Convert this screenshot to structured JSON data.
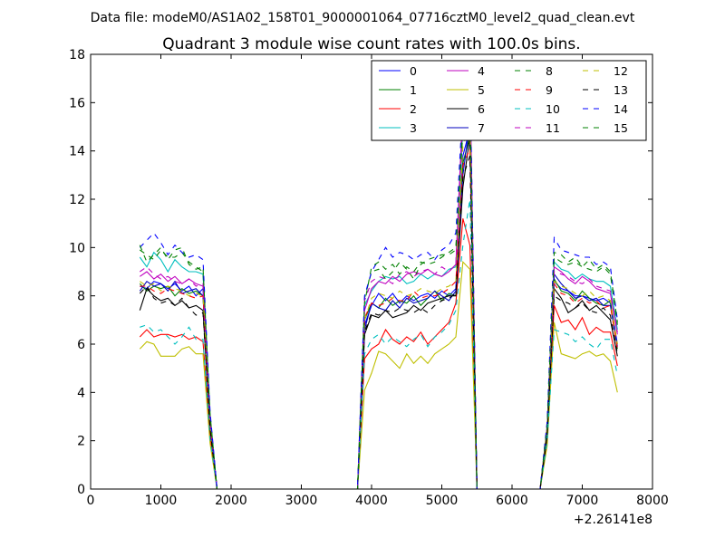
{
  "chart_data": {
    "type": "line",
    "suptitle": "Data file: modeM0/AS1A02_158T01_9000001064_07716cztM0_level2_quad_clean.evt",
    "title": "Quadrant 3 module wise count rates with 100.0s bins.",
    "xlabel": "",
    "ylabel": "",
    "x_offset_label": "+2.26141e8",
    "xlim": [
      0,
      8000
    ],
    "ylim": [
      0,
      18
    ],
    "xticks": [
      "0",
      "1000",
      "2000",
      "3000",
      "4000",
      "5000",
      "6000",
      "7000",
      "8000"
    ],
    "yticks": [
      "0",
      "2",
      "4",
      "6",
      "8",
      "10",
      "12",
      "14",
      "16",
      "18"
    ],
    "grid": false,
    "legend": {
      "placement": "top-right",
      "columns": 4
    },
    "x": [
      700,
      800,
      900,
      1000,
      1100,
      1200,
      1300,
      1400,
      1500,
      1600,
      1700,
      1800,
      1900,
      2000,
      2500,
      3000,
      3500,
      3800,
      3900,
      4000,
      4100,
      4200,
      4300,
      4400,
      4500,
      4600,
      4700,
      4800,
      4900,
      5000,
      5100,
      5200,
      5300,
      5400,
      5500,
      5600,
      6400,
      6500,
      6600,
      6700,
      6800,
      6900,
      7000,
      7100,
      7200,
      7300,
      7400,
      7500
    ],
    "series": [
      {
        "name": "0",
        "color": "#0000ff",
        "dashed": false,
        "values": [
          8.4,
          8.3,
          8.6,
          8.5,
          8.3,
          8.5,
          8.2,
          8.4,
          8.0,
          8.3,
          2.8,
          0,
          0,
          0,
          0,
          0,
          0,
          0,
          6.8,
          7.6,
          8.1,
          7.8,
          8.1,
          7.7,
          8.0,
          7.8,
          8.0,
          8.1,
          7.9,
          8.2,
          8.0,
          8.3,
          13.8,
          14.9,
          0,
          0,
          0,
          2.4,
          8.6,
          8.3,
          8.2,
          8.0,
          8.0,
          7.9,
          7.8,
          7.9,
          7.7,
          6.0
        ]
      },
      {
        "name": "1",
        "color": "#008000",
        "dashed": false,
        "values": [
          8.5,
          8.2,
          8.4,
          8.3,
          8.4,
          8.0,
          8.3,
          8.1,
          8.2,
          8.0,
          2.7,
          0,
          0,
          0,
          0,
          0,
          0,
          0,
          7.0,
          7.7,
          7.5,
          7.9,
          7.6,
          7.8,
          7.7,
          8.0,
          7.6,
          7.9,
          8.2,
          7.8,
          8.1,
          8.0,
          13.5,
          14.6,
          0,
          0,
          0,
          2.3,
          8.7,
          8.2,
          8.1,
          7.8,
          8.2,
          7.9,
          7.7,
          7.6,
          7.8,
          5.8
        ]
      },
      {
        "name": "2",
        "color": "#ff0000",
        "dashed": false,
        "values": [
          6.3,
          6.6,
          6.3,
          6.4,
          6.4,
          6.3,
          6.4,
          6.2,
          6.3,
          6.1,
          2.2,
          0,
          0,
          0,
          0,
          0,
          0,
          0,
          5.4,
          5.8,
          6.0,
          6.6,
          6.2,
          6.0,
          6.3,
          6.1,
          6.5,
          6.0,
          6.3,
          6.6,
          6.9,
          7.7,
          11.2,
          10.1,
          0,
          0,
          0,
          2.0,
          7.6,
          6.9,
          7.0,
          6.6,
          7.1,
          6.4,
          6.7,
          6.5,
          6.5,
          5.1
        ]
      },
      {
        "name": "3",
        "color": "#00bfbf",
        "dashed": false,
        "values": [
          9.6,
          9.2,
          9.8,
          9.5,
          9.0,
          9.5,
          9.2,
          9.0,
          9.0,
          8.9,
          3.0,
          0,
          0,
          0,
          0,
          0,
          0,
          0,
          7.6,
          8.2,
          8.6,
          8.8,
          8.7,
          8.8,
          8.5,
          8.6,
          8.9,
          8.7,
          8.9,
          8.8,
          9.1,
          9.2,
          15.0,
          16.6,
          0,
          0,
          0,
          2.6,
          9.4,
          9.1,
          9.0,
          8.7,
          8.9,
          8.7,
          8.6,
          8.6,
          8.4,
          6.6
        ]
      },
      {
        "name": "4",
        "color": "#bf00bf",
        "dashed": false,
        "values": [
          8.8,
          9.0,
          8.7,
          8.9,
          8.6,
          8.8,
          8.5,
          8.7,
          8.5,
          8.4,
          2.8,
          0,
          0,
          0,
          0,
          0,
          0,
          0,
          7.4,
          8.3,
          8.6,
          8.5,
          8.8,
          8.6,
          8.9,
          9.0,
          8.9,
          9.1,
          8.9,
          8.8,
          9.0,
          9.3,
          15.4,
          17.2,
          0,
          0,
          0,
          2.6,
          9.2,
          9.0,
          8.7,
          8.5,
          8.8,
          8.6,
          8.3,
          8.2,
          8.1,
          6.4
        ]
      },
      {
        "name": "5",
        "color": "#bfbf00",
        "dashed": false,
        "values": [
          5.8,
          6.1,
          6.0,
          5.5,
          5.5,
          5.5,
          5.8,
          5.9,
          5.6,
          5.6,
          1.9,
          0,
          0,
          0,
          0,
          0,
          0,
          0,
          4.1,
          4.8,
          5.7,
          5.6,
          5.3,
          5.0,
          5.6,
          5.2,
          5.5,
          5.2,
          5.6,
          5.8,
          6.0,
          6.3,
          9.4,
          9.1,
          0,
          0,
          0,
          1.8,
          6.9,
          5.6,
          5.5,
          5.4,
          5.6,
          5.7,
          5.5,
          5.6,
          5.3,
          4.0
        ]
      },
      {
        "name": "6",
        "color": "#000000",
        "dashed": false,
        "values": [
          7.4,
          8.3,
          8.0,
          7.8,
          7.9,
          7.6,
          7.8,
          7.5,
          7.6,
          7.4,
          2.5,
          0,
          0,
          0,
          0,
          0,
          0,
          0,
          6.4,
          7.2,
          7.1,
          7.4,
          7.1,
          7.2,
          7.3,
          7.6,
          7.4,
          7.7,
          7.8,
          7.9,
          8.0,
          8.0,
          12.5,
          14.6,
          0,
          0,
          0,
          2.2,
          8.3,
          7.9,
          7.3,
          7.5,
          7.8,
          7.4,
          7.6,
          7.3,
          7.0,
          5.5
        ]
      },
      {
        "name": "7",
        "color": "#0000bf",
        "dashed": false,
        "values": [
          8.2,
          8.6,
          8.4,
          8.5,
          8.2,
          8.6,
          8.1,
          8.2,
          8.3,
          8.0,
          2.7,
          0,
          0,
          0,
          0,
          0,
          0,
          0,
          6.6,
          7.7,
          7.5,
          7.4,
          7.8,
          7.5,
          7.9,
          7.7,
          7.8,
          7.9,
          8.2,
          8.0,
          7.8,
          8.2,
          13.0,
          15.2,
          0,
          0,
          0,
          2.4,
          8.9,
          8.5,
          8.2,
          7.9,
          8.0,
          7.8,
          7.9,
          7.6,
          7.6,
          5.9
        ]
      },
      {
        "name": "8",
        "color": "#008000",
        "dashed": true,
        "values": [
          9.9,
          9.7,
          9.5,
          9.9,
          9.6,
          9.6,
          9.8,
          9.4,
          9.2,
          9.0,
          3.1,
          0,
          0,
          0,
          0,
          0,
          0,
          0,
          7.9,
          9.0,
          9.1,
          8.7,
          9.0,
          9.4,
          9.1,
          8.7,
          9.3,
          9.5,
          9.6,
          9.7,
          9.7,
          9.9,
          14.8,
          15.9,
          0,
          0,
          0,
          2.7,
          9.6,
          9.4,
          9.3,
          9.4,
          9.2,
          9.1,
          9.0,
          9.2,
          8.9,
          6.8
        ]
      },
      {
        "name": "9",
        "color": "#ff0000",
        "dashed": true,
        "values": [
          8.4,
          8.4,
          8.2,
          8.1,
          8.3,
          8.2,
          8.1,
          8.0,
          7.9,
          8.0,
          2.7,
          0,
          0,
          0,
          0,
          0,
          0,
          0,
          7.1,
          7.7,
          7.6,
          7.7,
          7.9,
          7.8,
          7.8,
          8.2,
          7.9,
          8.0,
          8.0,
          8.1,
          8.3,
          8.6,
          13.4,
          14.1,
          0,
          0,
          0,
          2.4,
          8.5,
          8.1,
          8.0,
          7.7,
          7.9,
          7.7,
          7.8,
          7.5,
          7.6,
          5.8
        ]
      },
      {
        "name": "10",
        "color": "#00bfbf",
        "dashed": true,
        "values": [
          6.7,
          6.8,
          6.5,
          6.6,
          6.3,
          6.0,
          6.3,
          6.7,
          6.2,
          6.2,
          2.1,
          0,
          0,
          0,
          0,
          0,
          0,
          0,
          5.6,
          6.2,
          6.4,
          6.0,
          6.3,
          6.1,
          5.9,
          6.2,
          6.4,
          5.9,
          6.3,
          6.5,
          6.8,
          7.4,
          10.1,
          12.0,
          0,
          0,
          0,
          2.0,
          6.6,
          6.5,
          6.4,
          6.1,
          6.3,
          6.0,
          5.8,
          6.2,
          6.2,
          4.7
        ]
      },
      {
        "name": "11",
        "color": "#bf00bf",
        "dashed": true,
        "values": [
          9.0,
          9.2,
          8.9,
          8.7,
          8.8,
          8.6,
          8.5,
          8.7,
          8.4,
          8.5,
          2.9,
          0,
          0,
          0,
          0,
          0,
          0,
          0,
          7.8,
          8.6,
          8.8,
          8.7,
          8.5,
          8.9,
          9.0,
          8.8,
          9.0,
          9.1,
          8.9,
          9.2,
          9.0,
          9.3,
          15.9,
          17.4,
          0,
          0,
          0,
          2.7,
          9.0,
          8.9,
          8.8,
          8.6,
          8.5,
          8.7,
          8.4,
          8.3,
          8.2,
          6.5
        ]
      },
      {
        "name": "12",
        "color": "#bfbf00",
        "dashed": true,
        "values": [
          8.6,
          8.4,
          8.5,
          8.2,
          8.4,
          8.3,
          8.2,
          8.0,
          8.1,
          8.0,
          2.8,
          0,
          0,
          0,
          0,
          0,
          0,
          0,
          7.0,
          7.9,
          8.1,
          8.0,
          7.9,
          8.2,
          8.0,
          8.1,
          8.3,
          8.2,
          8.1,
          8.3,
          8.4,
          8.6,
          14.2,
          15.1,
          0,
          0,
          0,
          2.5,
          8.6,
          8.4,
          8.3,
          8.1,
          8.0,
          8.2,
          7.9,
          8.0,
          7.8,
          6.0
        ]
      },
      {
        "name": "13",
        "color": "#000000",
        "dashed": true,
        "values": [
          8.1,
          8.4,
          7.9,
          7.7,
          7.8,
          7.6,
          7.9,
          7.5,
          7.2,
          7.3,
          2.5,
          0,
          0,
          0,
          0,
          0,
          0,
          0,
          6.5,
          7.3,
          7.2,
          7.4,
          7.3,
          7.5,
          7.4,
          7.3,
          7.5,
          7.3,
          7.6,
          7.8,
          7.9,
          8.1,
          12.9,
          13.8,
          0,
          0,
          0,
          2.3,
          8.0,
          7.8,
          7.7,
          7.5,
          7.7,
          7.4,
          7.3,
          7.5,
          7.2,
          5.6
        ]
      },
      {
        "name": "14",
        "color": "#0000ff",
        "dashed": true,
        "values": [
          10.0,
          10.3,
          10.6,
          10.2,
          9.7,
          10.1,
          9.8,
          9.6,
          9.7,
          9.5,
          3.2,
          0,
          0,
          0,
          0,
          0,
          0,
          0,
          8.0,
          9.0,
          9.5,
          10.0,
          9.6,
          9.8,
          9.7,
          9.5,
          9.7,
          9.8,
          9.5,
          9.9,
          10.1,
          10.6,
          16.0,
          17.5,
          0,
          0,
          0,
          2.8,
          10.4,
          9.9,
          9.8,
          9.7,
          9.6,
          9.6,
          9.3,
          9.4,
          9.2,
          7.0
        ]
      },
      {
        "name": "15",
        "color": "#008000",
        "dashed": true,
        "values": [
          10.1,
          9.4,
          9.7,
          10.0,
          9.5,
          9.9,
          10.0,
          9.3,
          9.1,
          9.2,
          3.1,
          0,
          0,
          0,
          0,
          0,
          0,
          0,
          7.7,
          9.2,
          9.4,
          9.1,
          9.3,
          8.9,
          9.2,
          9.0,
          9.4,
          9.3,
          9.4,
          9.6,
          9.8,
          10.0,
          15.1,
          16.2,
          0,
          0,
          0,
          2.6,
          9.8,
          9.7,
          9.4,
          9.6,
          9.2,
          9.5,
          9.1,
          9.3,
          9.0,
          6.9
        ]
      }
    ]
  }
}
